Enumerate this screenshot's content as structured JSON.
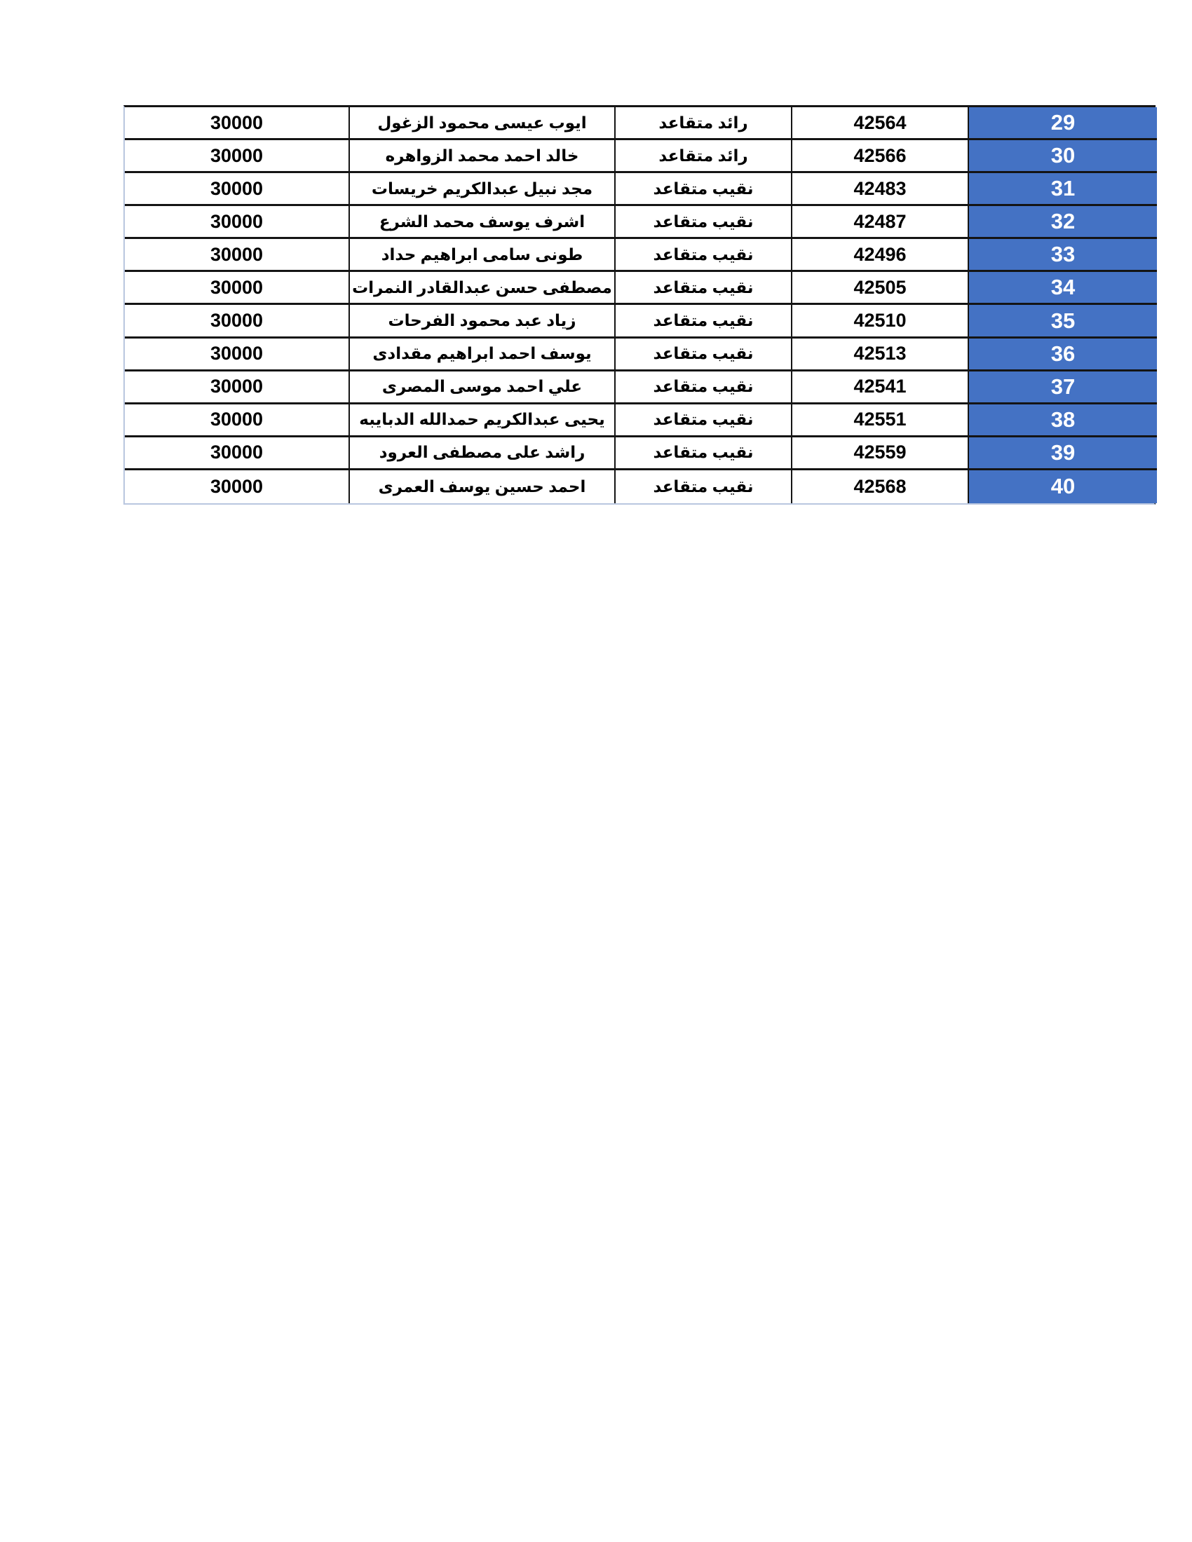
{
  "page": {
    "background": "#ffffff"
  },
  "table": {
    "accent_blue": "#4472C4",
    "index_text_color": "#ffffff",
    "border_color": "#141414",
    "outer_light_border_color": "#b9c6df",
    "rows": [
      {
        "index": "29",
        "serial": "42564",
        "rank": "رائد متقاعد",
        "name": "ايوب عيسى محمود الزغول",
        "amount": "30000"
      },
      {
        "index": "30",
        "serial": "42566",
        "rank": "رائد متقاعد",
        "name": "خالد احمد محمد الزواهره",
        "amount": "30000"
      },
      {
        "index": "31",
        "serial": "42483",
        "rank": "نقيب متقاعد",
        "name": "مجد نبيل عبدالكريم خريسات",
        "amount": "30000"
      },
      {
        "index": "32",
        "serial": "42487",
        "rank": "نقيب متقاعد",
        "name": "اشرف يوسف محمد الشرع",
        "amount": "30000"
      },
      {
        "index": "33",
        "serial": "42496",
        "rank": "نقيب متقاعد",
        "name": "طونى سامى ابراهيم حداد",
        "amount": "30000"
      },
      {
        "index": "34",
        "serial": "42505",
        "rank": "نقيب متقاعد",
        "name": "مصطفى حسن عبدالقادر النمرات",
        "amount": "30000"
      },
      {
        "index": "35",
        "serial": "42510",
        "rank": "نقيب متقاعد",
        "name": "زياد عبد محمود الفرحات",
        "amount": "30000"
      },
      {
        "index": "36",
        "serial": "42513",
        "rank": "نقيب متقاعد",
        "name": "يوسف احمد ابراهيم مقدادى",
        "amount": "30000"
      },
      {
        "index": "37",
        "serial": "42541",
        "rank": "نقيب متقاعد",
        "name": "علي احمد موسى المصرى",
        "amount": "30000"
      },
      {
        "index": "38",
        "serial": "42551",
        "rank": "نقيب متقاعد",
        "name": "يحيى عبدالكريم حمدالله الدبايبه",
        "amount": "30000"
      },
      {
        "index": "39",
        "serial": "42559",
        "rank": "نقيب متقاعد",
        "name": "راشد على مصطفى العرود",
        "amount": "30000"
      },
      {
        "index": "40",
        "serial": "42568",
        "rank": "نقيب متقاعد",
        "name": "احمد حسين يوسف العمرى",
        "amount": "30000"
      }
    ]
  }
}
